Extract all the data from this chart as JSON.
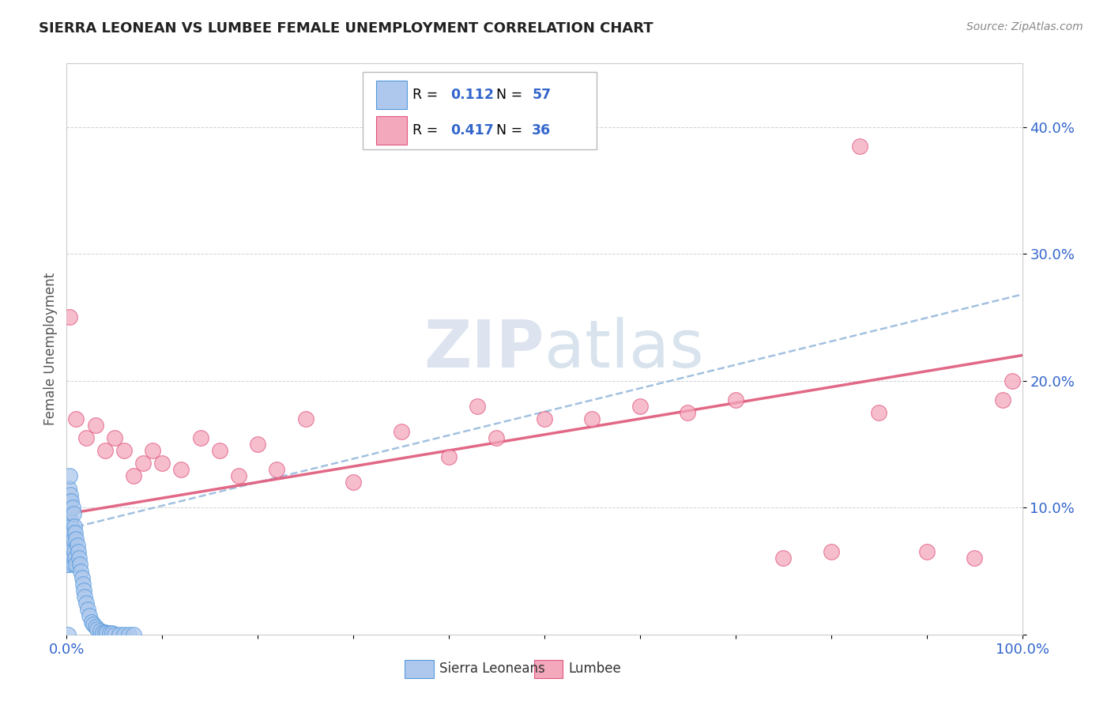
{
  "title": "SIERRA LEONEAN VS LUMBEE FEMALE UNEMPLOYMENT CORRELATION CHART",
  "source": "Source: ZipAtlas.com",
  "ylabel": "Female Unemployment",
  "xlim": [
    0,
    1.0
  ],
  "ylim": [
    0,
    0.45
  ],
  "xticks": [
    0.0,
    0.1,
    0.2,
    0.3,
    0.4,
    0.5,
    0.6,
    0.7,
    0.8,
    0.9,
    1.0
  ],
  "xticklabels": [
    "0.0%",
    "",
    "",
    "",
    "",
    "",
    "",
    "",
    "",
    "",
    "100.0%"
  ],
  "yticks": [
    0.0,
    0.1,
    0.2,
    0.3,
    0.4
  ],
  "yticklabels": [
    "",
    "10.0%",
    "20.0%",
    "30.0%",
    "40.0%"
  ],
  "sierra_color": "#adc8ec",
  "lumbee_color": "#f4a8bc",
  "sierra_edge": "#5599dd",
  "lumbee_edge": "#e05580",
  "trend_blue_color": "#99bbdd",
  "trend_pink_color": "#e06080",
  "watermark_color": "#dde4f0",
  "background_color": "#ffffff",
  "grid_color": "#cccccc",
  "tick_color": "#3366cc",
  "title_color": "#222222",
  "ylabel_color": "#555555",
  "source_color": "#888888",
  "legend_r_color": "#000000",
  "legend_val_color": "#3366cc",
  "bottom_label_color": "#333333",
  "sierra_x": [
    0.001,
    0.001,
    0.001,
    0.002,
    0.002,
    0.002,
    0.002,
    0.003,
    0.003,
    0.003,
    0.003,
    0.004,
    0.004,
    0.004,
    0.005,
    0.005,
    0.005,
    0.006,
    0.006,
    0.006,
    0.007,
    0.007,
    0.007,
    0.008,
    0.008,
    0.009,
    0.009,
    0.01,
    0.01,
    0.011,
    0.012,
    0.013,
    0.014,
    0.015,
    0.016,
    0.017,
    0.018,
    0.019,
    0.02,
    0.022,
    0.024,
    0.026,
    0.028,
    0.03,
    0.032,
    0.035,
    0.038,
    0.04,
    0.042,
    0.045,
    0.048,
    0.05,
    0.055,
    0.06,
    0.065,
    0.07,
    0.001
  ],
  "sierra_y": [
    0.095,
    0.075,
    0.055,
    0.115,
    0.095,
    0.075,
    0.055,
    0.125,
    0.105,
    0.085,
    0.065,
    0.11,
    0.09,
    0.07,
    0.105,
    0.085,
    0.065,
    0.1,
    0.08,
    0.06,
    0.095,
    0.075,
    0.055,
    0.085,
    0.065,
    0.08,
    0.06,
    0.075,
    0.055,
    0.07,
    0.065,
    0.06,
    0.055,
    0.05,
    0.045,
    0.04,
    0.035,
    0.03,
    0.025,
    0.02,
    0.015,
    0.01,
    0.008,
    0.006,
    0.004,
    0.003,
    0.002,
    0.002,
    0.001,
    0.001,
    0.001,
    0.0,
    0.0,
    0.0,
    0.0,
    0.0,
    0.0
  ],
  "lumbee_x": [
    0.003,
    0.01,
    0.02,
    0.03,
    0.04,
    0.05,
    0.06,
    0.07,
    0.08,
    0.09,
    0.1,
    0.12,
    0.14,
    0.16,
    0.18,
    0.2,
    0.22,
    0.25,
    0.3,
    0.35,
    0.4,
    0.43,
    0.45,
    0.5,
    0.55,
    0.6,
    0.65,
    0.7,
    0.75,
    0.8,
    0.83,
    0.85,
    0.9,
    0.95,
    0.98,
    0.99
  ],
  "lumbee_y": [
    0.25,
    0.17,
    0.155,
    0.165,
    0.145,
    0.155,
    0.145,
    0.125,
    0.135,
    0.145,
    0.135,
    0.13,
    0.155,
    0.145,
    0.125,
    0.15,
    0.13,
    0.17,
    0.12,
    0.16,
    0.14,
    0.18,
    0.155,
    0.17,
    0.17,
    0.18,
    0.175,
    0.185,
    0.06,
    0.065,
    0.385,
    0.175,
    0.065,
    0.06,
    0.185,
    0.2
  ],
  "sierra_trend_x": [
    0.0,
    1.0
  ],
  "sierra_trend_y": [
    0.083,
    0.268
  ],
  "lumbee_trend_x": [
    0.0,
    1.0
  ],
  "lumbee_trend_y": [
    0.095,
    0.22
  ]
}
